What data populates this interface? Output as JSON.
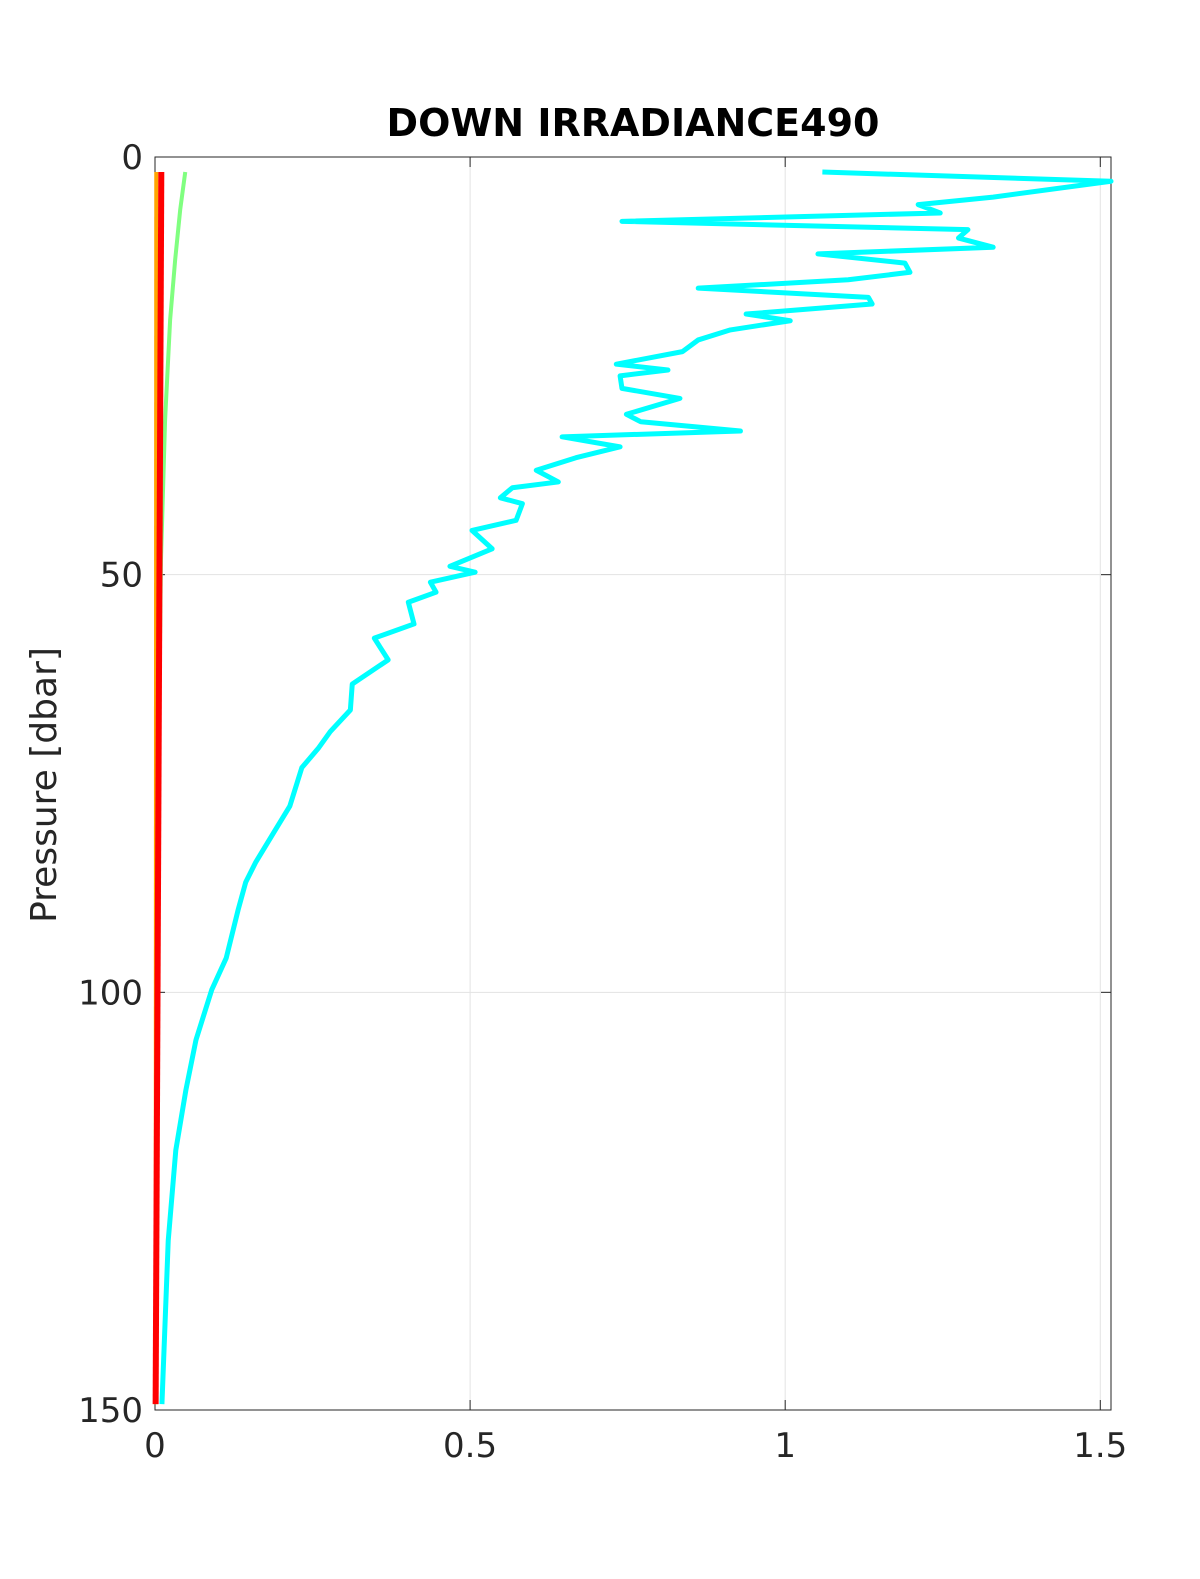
{
  "chart_data": {
    "type": "line",
    "title": "DOWN IRRADIANCE490",
    "y_label": "Pressure [dbar]",
    "xlim": [
      0,
      1.517
    ],
    "xticks": [
      0,
      0.5,
      1,
      1.5
    ],
    "ylim": [
      0,
      150
    ],
    "yticks": [
      0,
      50,
      100,
      150
    ],
    "y_reversed": true,
    "grid": true,
    "series": [
      {
        "color": "#00ffff",
        "width": 5,
        "values": [
          1.059,
          1.517,
          1.33,
          1.211,
          1.246,
          0.741,
          1.29,
          1.275,
          1.33,
          1.052,
          1.19,
          1.198,
          1.1,
          0.862,
          1.132,
          1.138,
          0.938,
          1.008,
          0.913,
          0.862,
          0.837,
          0.732,
          0.814,
          0.738,
          0.741,
          0.833,
          0.748,
          0.771,
          0.929,
          0.646,
          0.738,
          0.668,
          0.605,
          0.64,
          0.567,
          0.548,
          0.583,
          0.573,
          0.503,
          0.535,
          0.468,
          0.508,
          0.437,
          0.446,
          0.402,
          0.411,
          0.348,
          0.37,
          0.313,
          0.31,
          0.278,
          0.259,
          0.233,
          0.214,
          0.189,
          0.16,
          0.144,
          0.132,
          0.113,
          0.09,
          0.065,
          0.049,
          0.033,
          0.021,
          0.011
        ],
        "pressure": [
          1.8,
          2.9,
          4.8,
          5.7,
          6.7,
          7.7,
          8.7,
          9.7,
          10.8,
          11.6,
          12.7,
          13.8,
          14.7,
          15.7,
          16.8,
          17.6,
          18.8,
          19.6,
          20.7,
          21.9,
          23.3,
          24.8,
          25.5,
          26.2,
          27.7,
          28.9,
          30.8,
          31.7,
          32.8,
          33.5,
          34.7,
          36.0,
          37.5,
          38.9,
          39.6,
          40.8,
          41.5,
          43.5,
          44.7,
          46.9,
          49.0,
          49.7,
          50.9,
          52.1,
          53.3,
          55.9,
          57.6,
          60.2,
          63.1,
          66.2,
          68.8,
          70.8,
          73.1,
          77.7,
          80.8,
          84.4,
          86.8,
          90.1,
          95.9,
          99.7,
          105.7,
          111.7,
          118.9,
          129.7,
          149.3
        ]
      },
      {
        "color": "#80ff80",
        "width": 4,
        "values": [
          0.048,
          0.04,
          0.032,
          0.024,
          0.016,
          0.0095,
          0.005,
          0.002
        ],
        "pressure": [
          1.8,
          6.3,
          12.3,
          19.5,
          31.5,
          48.2,
          77,
          149.3
        ]
      },
      {
        "color": "#ffa500",
        "width": 4,
        "values": [
          0.002,
          0.001
        ],
        "pressure": [
          1.8,
          149.3
        ]
      },
      {
        "color": "#ff0000",
        "width": 6,
        "values": [
          0.01,
          0.001
        ],
        "pressure": [
          1.8,
          149.3
        ]
      }
    ]
  }
}
